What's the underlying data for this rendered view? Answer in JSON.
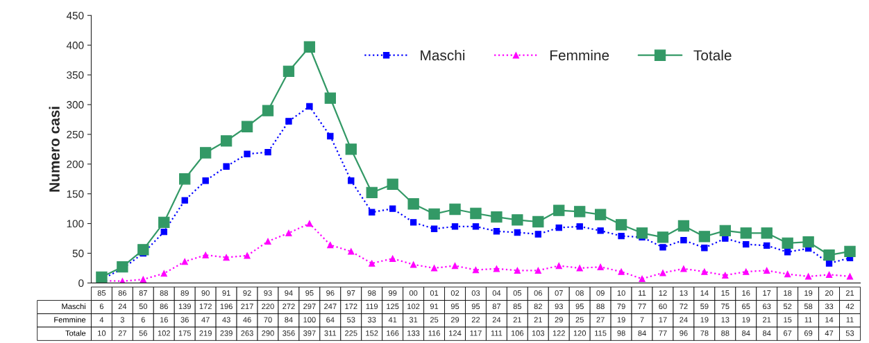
{
  "chart_data": {
    "type": "line",
    "ylabel": "Numero casi",
    "categories": [
      "85",
      "86",
      "87",
      "88",
      "89",
      "90",
      "91",
      "92",
      "93",
      "94",
      "95",
      "96",
      "97",
      "98",
      "99",
      "00",
      "01",
      "02",
      "03",
      "04",
      "05",
      "06",
      "07",
      "08",
      "09",
      "10",
      "11",
      "12",
      "13",
      "14",
      "15",
      "16",
      "17",
      "18",
      "19",
      "20",
      "21"
    ],
    "series": [
      {
        "name": "Maschi",
        "color": "#0000ff",
        "marker": "square",
        "line_style": "dotted",
        "values": [
          6,
          24,
          50,
          86,
          139,
          172,
          196,
          217,
          220,
          272,
          297,
          247,
          172,
          119,
          125,
          102,
          91,
          95,
          95,
          87,
          85,
          82,
          93,
          95,
          88,
          79,
          77,
          60,
          72,
          59,
          75,
          65,
          63,
          52,
          58,
          33,
          42
        ]
      },
      {
        "name": "Femmine",
        "color": "#ff00ff",
        "marker": "triangle",
        "line_style": "dotted",
        "values": [
          4,
          3,
          6,
          16,
          36,
          47,
          43,
          46,
          70,
          84,
          100,
          64,
          53,
          33,
          41,
          31,
          25,
          29,
          22,
          24,
          21,
          21,
          29,
          25,
          27,
          19,
          7,
          17,
          24,
          19,
          13,
          19,
          21,
          15,
          11,
          14,
          11
        ]
      },
      {
        "name": "Totale",
        "color": "#339966",
        "marker": "square",
        "line_style": "solid",
        "values": [
          10,
          27,
          56,
          102,
          175,
          219,
          239,
          263,
          290,
          356,
          397,
          311,
          225,
          152,
          166,
          133,
          116,
          124,
          117,
          111,
          106,
          103,
          122,
          120,
          115,
          98,
          84,
          77,
          96,
          78,
          88,
          84,
          84,
          67,
          69,
          47,
          53
        ]
      }
    ],
    "ylim": [
      0,
      450
    ],
    "yticks": [
      0,
      50,
      100,
      150,
      200,
      250,
      300,
      350,
      400,
      450
    ],
    "grid": false,
    "legend": "top right",
    "data_labels": true
  }
}
